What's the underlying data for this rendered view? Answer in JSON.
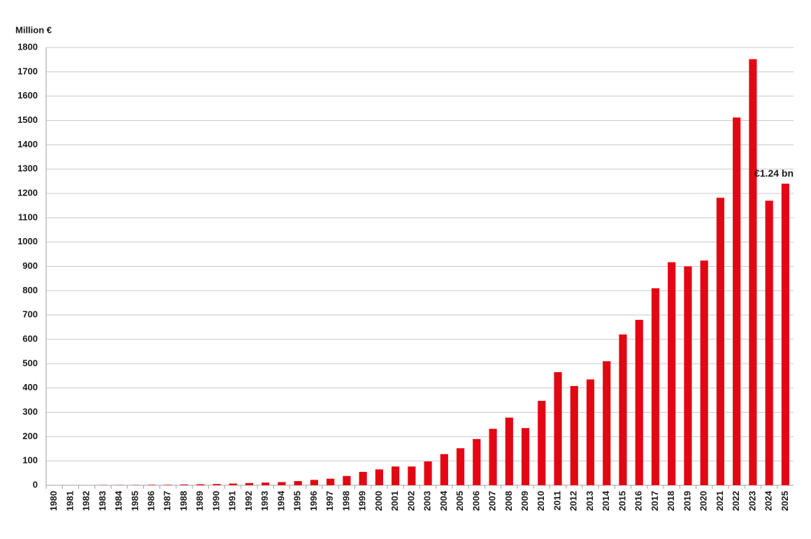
{
  "chart_data": {
    "type": "bar",
    "y_label": "Million €",
    "categories": [
      "1980",
      "1981",
      "1982",
      "1983",
      "1984",
      "1985",
      "1986",
      "1987",
      "1988",
      "1989",
      "1990",
      "1991",
      "1992",
      "1993",
      "1994",
      "1995",
      "1996",
      "1997",
      "1998",
      "1999",
      "2000",
      "2001",
      "2002",
      "2003",
      "2004",
      "2005",
      "2006",
      "2007",
      "2008",
      "2009",
      "2010",
      "2011",
      "2012",
      "2013",
      "2014",
      "2015",
      "2016",
      "2017",
      "2018",
      "2019",
      "2020",
      "2021",
      "2022",
      "2023",
      "2024",
      "2025"
    ],
    "values": [
      0,
      0,
      0,
      1,
      1,
      1,
      2,
      2,
      3,
      4,
      5,
      7,
      9,
      11,
      13,
      17,
      22,
      27,
      38,
      55,
      65,
      77,
      77,
      98,
      128,
      152,
      190,
      232,
      278,
      235,
      347,
      465,
      408,
      435,
      510,
      620,
      680,
      810,
      917,
      900,
      924,
      1182,
      1512,
      1752,
      1170,
      1240
    ],
    "value_labels": [
      null,
      null,
      null,
      null,
      null,
      null,
      null,
      null,
      null,
      null,
      null,
      null,
      null,
      null,
      null,
      null,
      null,
      null,
      null,
      null,
      null,
      null,
      null,
      null,
      null,
      null,
      null,
      null,
      null,
      null,
      null,
      null,
      null,
      null,
      null,
      null,
      null,
      null,
      null,
      null,
      null,
      null,
      null,
      null,
      null,
      "€1.24 bn"
    ],
    "color": "#e30613",
    "ylim": [
      0,
      1800
    ],
    "yticks": [
      0,
      100,
      200,
      300,
      400,
      500,
      600,
      700,
      800,
      900,
      1000,
      1100,
      1200,
      1300,
      1400,
      1500,
      1600,
      1700,
      1800
    ],
    "grid": true
  }
}
